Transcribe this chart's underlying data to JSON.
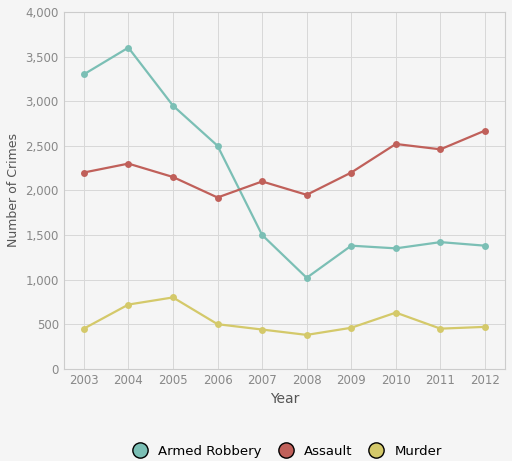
{
  "years": [
    2003,
    2004,
    2005,
    2006,
    2007,
    2008,
    2009,
    2010,
    2011,
    2012
  ],
  "armed_robbery": [
    3300,
    3600,
    2950,
    2500,
    1500,
    1020,
    1380,
    1350,
    1420,
    1380
  ],
  "assault": [
    2200,
    2300,
    2150,
    1920,
    2100,
    1950,
    2200,
    2520,
    2460,
    2670
  ],
  "murder": [
    450,
    720,
    800,
    500,
    440,
    380,
    460,
    630,
    450,
    470
  ],
  "armed_robbery_color": "#7bbfb5",
  "assault_color": "#c0605a",
  "murder_color": "#d4c96a",
  "xlabel": "Year",
  "ylabel": "Number of Crimes",
  "ylim": [
    0,
    4000
  ],
  "yticks": [
    0,
    500,
    1000,
    1500,
    2000,
    2500,
    3000,
    3500,
    4000
  ],
  "legend_labels": [
    "Armed Robbery",
    "Assault",
    "Murder"
  ],
  "marker": "o",
  "marker_size": 5,
  "linewidth": 1.6,
  "background_color": "#f5f5f5",
  "plot_bg_color": "#f5f5f5",
  "grid_color": "#d8d8d8",
  "spine_color": "#cccccc",
  "tick_color": "#888888",
  "label_color": "#555555"
}
